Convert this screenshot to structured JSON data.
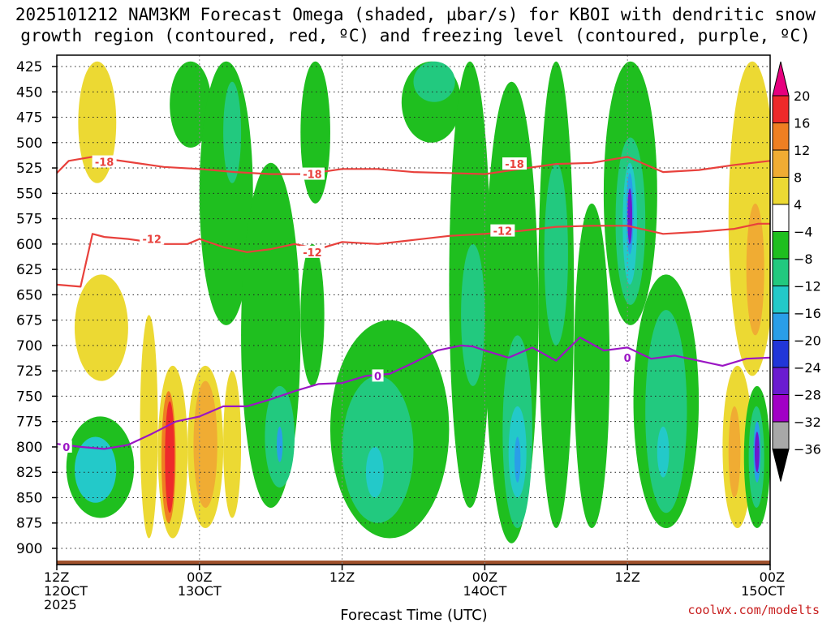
{
  "title_line1": "2025101212 NAM3KM Forecast Omega (shaded, µbar/s) for KBOI with dendritic snow",
  "title_line2": "growth region (contoured, red, ºC) and freezing level (contoured, purple, ºC)",
  "credit": "coolwx.com/modelts",
  "chart_data": {
    "type": "heatmap",
    "title": "2025101212 NAM3KM Forecast Omega (shaded, µbar/s) for KBOI with dendritic snow growth region (contoured, red, ºC) and freezing level (contoured, purple, ºC)",
    "xlabel": "Forecast Time (UTC)",
    "ylabel": "",
    "x_unit": "forecast hour from 2025-10-12 12Z",
    "xlim": [
      0,
      60
    ],
    "ylim": [
      910,
      415
    ],
    "y_scale": "reversed pressure (hPa)",
    "grid": true,
    "x_ticks": [
      {
        "hour": 0,
        "line1": "12Z",
        "line2": "12OCT",
        "line3": "2025"
      },
      {
        "hour": 12,
        "line1": "00Z",
        "line2": "13OCT",
        "line3": ""
      },
      {
        "hour": 24,
        "line1": "12Z",
        "line2": "",
        "line3": ""
      },
      {
        "hour": 36,
        "line1": "00Z",
        "line2": "14OCT",
        "line3": ""
      },
      {
        "hour": 48,
        "line1": "12Z",
        "line2": "",
        "line3": ""
      },
      {
        "hour": 60,
        "line1": "00Z",
        "line2": "15OCT",
        "line3": ""
      }
    ],
    "y_ticks": [
      "425",
      "450",
      "475",
      "500",
      "525",
      "550",
      "575",
      "600",
      "625",
      "650",
      "675",
      "700",
      "725",
      "750",
      "775",
      "800",
      "825",
      "850",
      "875",
      "900"
    ],
    "colorbar": {
      "labels": [
        "20",
        "16",
        "12",
        "8",
        "4",
        "−4",
        "−8",
        "−12",
        "−16",
        "−20",
        "−24",
        "−28",
        "−32",
        "−36"
      ],
      "colors": [
        "#e6007e",
        "#ee2a2a",
        "#ef7f22",
        "#f0ac33",
        "#ecd933",
        "#ffffff",
        "#1fbf1f",
        "#22c97f",
        "#23c9c9",
        "#2a9ee8",
        "#2136d8",
        "#6a1bd0",
        "#a100c5",
        "#a8a8a8",
        "#000000"
      ]
    },
    "omega_cells": [
      {
        "t": [
          1.8,
          5.0
        ],
        "p": [
          420,
          540
        ],
        "omega": 6
      },
      {
        "t": [
          1.5,
          6.0
        ],
        "p": [
          630,
          735
        ],
        "omega": 6
      },
      {
        "t": [
          0.8,
          6.5
        ],
        "p": [
          770,
          870
        ],
        "omega": -6
      },
      {
        "t": [
          1.5,
          5.0
        ],
        "p": [
          790,
          855
        ],
        "omega": -12
      },
      {
        "t": [
          7.0,
          8.5
        ],
        "p": [
          670,
          890
        ],
        "omega": 6
      },
      {
        "t": [
          8.5,
          11.0
        ],
        "p": [
          720,
          890
        ],
        "omega": 6
      },
      {
        "t": [
          8.8,
          10.0
        ],
        "p": [
          745,
          875
        ],
        "omega": 12
      },
      {
        "t": [
          9.1,
          9.9
        ],
        "p": [
          755,
          865
        ],
        "omega": 16
      },
      {
        "t": [
          11.0,
          14.0
        ],
        "p": [
          720,
          880
        ],
        "omega": 6
      },
      {
        "t": [
          11.5,
          13.5
        ],
        "p": [
          735,
          860
        ],
        "omega": 10
      },
      {
        "t": [
          14.0,
          15.5
        ],
        "p": [
          725,
          870
        ],
        "omega": 6
      },
      {
        "t": [
          9.5,
          13.0
        ],
        "p": [
          420,
          505
        ],
        "omega": -6
      },
      {
        "t": [
          12.0,
          16.5
        ],
        "p": [
          420,
          680
        ],
        "omega": -6
      },
      {
        "t": [
          14.0,
          15.5
        ],
        "p": [
          440,
          540
        ],
        "omega": -10
      },
      {
        "t": [
          15.5,
          20.5
        ],
        "p": [
          520,
          860
        ],
        "omega": -6
      },
      {
        "t": [
          17.5,
          20.0
        ],
        "p": [
          740,
          840
        ],
        "omega": -10
      },
      {
        "t": [
          18.5,
          19.0
        ],
        "p": [
          780,
          815
        ],
        "omega": -18
      },
      {
        "t": [
          20.5,
          23.0
        ],
        "p": [
          420,
          560
        ],
        "omega": -6
      },
      {
        "t": [
          20.5,
          22.5
        ],
        "p": [
          600,
          740
        ],
        "omega": -6
      },
      {
        "t": [
          23.0,
          33.0
        ],
        "p": [
          675,
          890
        ],
        "omega": -6
      },
      {
        "t": [
          24.0,
          30.0
        ],
        "p": [
          730,
          875
        ],
        "omega": -10
      },
      {
        "t": [
          26.0,
          27.5
        ],
        "p": [
          800,
          850
        ],
        "omega": -14
      },
      {
        "t": [
          29.0,
          34.0
        ],
        "p": [
          420,
          500
        ],
        "omega": -6
      },
      {
        "t": [
          30.0,
          33.5
        ],
        "p": [
          420,
          460
        ],
        "omega": -10
      },
      {
        "t": [
          33.0,
          36.5
        ],
        "p": [
          420,
          860
        ],
        "omega": -6
      },
      {
        "t": [
          34.0,
          36.0
        ],
        "p": [
          600,
          740
        ],
        "omega": -10
      },
      {
        "t": [
          36.0,
          40.5
        ],
        "p": [
          440,
          895
        ],
        "omega": -6
      },
      {
        "t": [
          37.5,
          40.0
        ],
        "p": [
          690,
          880
        ],
        "omega": -10
      },
      {
        "t": [
          38.0,
          39.5
        ],
        "p": [
          760,
          850
        ],
        "omega": -14
      },
      {
        "t": [
          38.5,
          39.0
        ],
        "p": [
          790,
          835
        ],
        "omega": -18
      },
      {
        "t": [
          40.5,
          43.5
        ],
        "p": [
          420,
          880
        ],
        "omega": -6
      },
      {
        "t": [
          41.0,
          43.0
        ],
        "p": [
          520,
          700
        ],
        "omega": -10
      },
      {
        "t": [
          43.5,
          46.5
        ],
        "p": [
          560,
          880
        ],
        "omega": -6
      },
      {
        "t": [
          46.0,
          50.5
        ],
        "p": [
          420,
          680
        ],
        "omega": -6
      },
      {
        "t": [
          47.0,
          49.5
        ],
        "p": [
          495,
          660
        ],
        "omega": -10
      },
      {
        "t": [
          47.6,
          48.8
        ],
        "p": [
          520,
          640
        ],
        "omega": -14
      },
      {
        "t": [
          47.9,
          48.5
        ],
        "p": [
          530,
          610
        ],
        "omega": -18
      },
      {
        "t": [
          48.0,
          48.4
        ],
        "p": [
          545,
          600
        ],
        "omega": -24
      },
      {
        "t": [
          48.5,
          54.0
        ],
        "p": [
          630,
          880
        ],
        "omega": -6
      },
      {
        "t": [
          49.5,
          53.0
        ],
        "p": [
          665,
          865
        ],
        "omega": -10
      },
      {
        "t": [
          50.5,
          51.5
        ],
        "p": [
          780,
          830
        ],
        "omega": -14
      },
      {
        "t": [
          56.5,
          60.5
        ],
        "p": [
          420,
          730
        ],
        "omega": 6
      },
      {
        "t": [
          58.0,
          59.5
        ],
        "p": [
          560,
          690
        ],
        "omega": 10
      },
      {
        "t": [
          56.0,
          58.5
        ],
        "p": [
          720,
          880
        ],
        "omega": 6
      },
      {
        "t": [
          56.5,
          57.5
        ],
        "p": [
          760,
          850
        ],
        "omega": 10
      },
      {
        "t": [
          57.8,
          60.0
        ],
        "p": [
          740,
          880
        ],
        "omega": -6
      },
      {
        "t": [
          58.2,
          59.5
        ],
        "p": [
          760,
          860
        ],
        "omega": -10
      },
      {
        "t": [
          58.6,
          59.2
        ],
        "p": [
          775,
          835
        ],
        "omega": -18
      },
      {
        "t": [
          58.7,
          59.1
        ],
        "p": [
          785,
          825
        ],
        "omega": -26
      }
    ],
    "series": [
      {
        "name": "-18",
        "color": "#e8413c",
        "x": [
          0,
          1,
          3,
          6,
          9,
          12,
          15,
          18,
          21,
          24,
          27,
          30,
          33,
          36,
          39,
          42,
          45,
          48,
          51,
          54,
          57,
          60
        ],
        "y": [
          530,
          518,
          514,
          519,
          524,
          526,
          529,
          531,
          531,
          526,
          526,
          529,
          530,
          531,
          526,
          521,
          520,
          514,
          529,
          527,
          522,
          518
        ],
        "label_positions": [
          {
            "x": 4,
            "y": 519
          },
          {
            "x": 21.5,
            "y": 531
          },
          {
            "x": 38.5,
            "y": 521
          }
        ]
      },
      {
        "name": "-12",
        "color": "#e8413c",
        "x": [
          0,
          2,
          3,
          4,
          6,
          9,
          11,
          12,
          14,
          16,
          18,
          20,
          22,
          24,
          27,
          30,
          33,
          36,
          39,
          42,
          45,
          48,
          51,
          54,
          57,
          59,
          60
        ],
        "y": [
          640,
          642,
          590,
          593,
          595,
          600,
          600,
          595,
          603,
          608,
          605,
          600,
          605,
          598,
          600,
          596,
          592,
          590,
          587,
          583,
          582,
          582,
          590,
          588,
          585,
          580,
          580
        ],
        "label_positions": [
          {
            "x": 8,
            "y": 595
          },
          {
            "x": 21.5,
            "y": 608
          },
          {
            "x": 37.5,
            "y": 587
          }
        ]
      },
      {
        "name": "0",
        "color": "#9b15c4",
        "x": [
          0,
          2,
          4,
          6,
          8,
          10,
          12,
          14,
          16,
          18,
          20,
          22,
          24,
          26,
          28,
          30,
          32,
          34,
          35,
          36,
          38,
          40,
          42,
          44,
          46,
          48,
          50,
          52,
          54,
          56,
          58,
          60
        ],
        "y": [
          797,
          800,
          802,
          798,
          787,
          775,
          770,
          760,
          760,
          753,
          745,
          738,
          737,
          730,
          728,
          717,
          705,
          700,
          701,
          705,
          712,
          702,
          715,
          692,
          705,
          702,
          713,
          710,
          715,
          720,
          713,
          712
        ],
        "label_positions": [
          {
            "x": 0.8,
            "y": 800
          },
          {
            "x": 27,
            "y": 730
          },
          {
            "x": 48,
            "y": 712
          }
        ]
      }
    ],
    "ground_pressure": 912
  }
}
